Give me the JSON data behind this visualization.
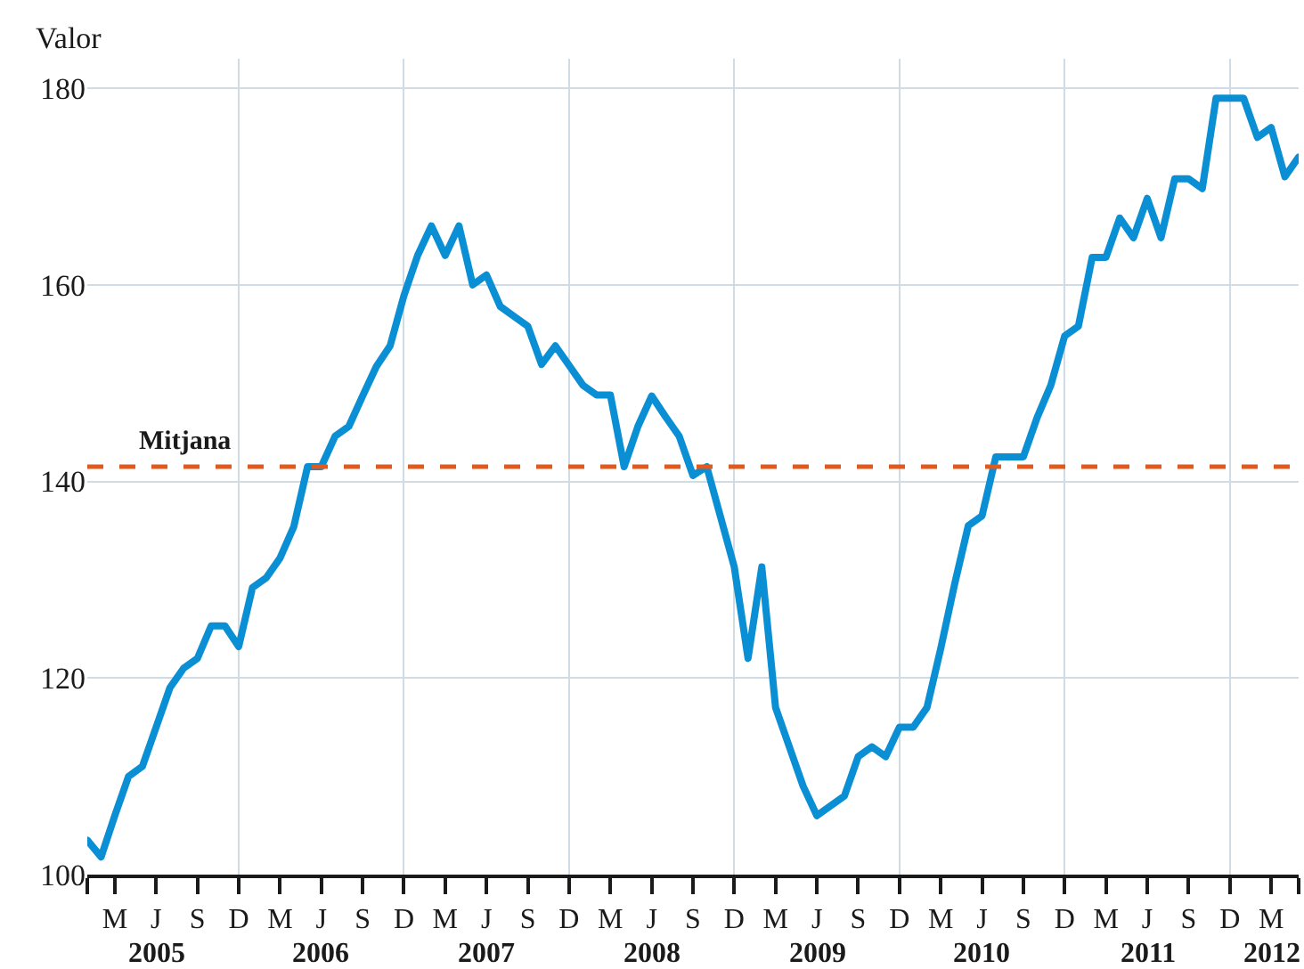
{
  "chart_data": {
    "type": "line",
    "ylabel": "Valor",
    "categories": [
      null,
      null,
      "M",
      null,
      null,
      "J",
      null,
      null,
      "S",
      null,
      null,
      "D",
      null,
      null,
      "M",
      null,
      null,
      "J",
      null,
      null,
      "S",
      null,
      null,
      "D",
      null,
      null,
      "M",
      null,
      null,
      "J",
      null,
      null,
      "S",
      null,
      null,
      "D",
      null,
      null,
      "M",
      null,
      null,
      "J",
      null,
      null,
      "S",
      null,
      null,
      "D",
      null,
      null,
      "M",
      null,
      null,
      "J",
      null,
      null,
      "S",
      null,
      null,
      "D",
      null,
      null,
      "M",
      null,
      null,
      "J",
      null,
      null,
      "S",
      null,
      null,
      "D",
      null,
      null,
      "M",
      null,
      null,
      "J",
      null,
      null,
      "S",
      null,
      null,
      "D",
      null,
      null,
      "M",
      null,
      null
    ],
    "series": [
      {
        "color": "#0a8fd4",
        "values": [
          103.5,
          101.8,
          106,
          110,
          111,
          115,
          119,
          121,
          122,
          125.3,
          125.3,
          123.2,
          129.2,
          130.2,
          132.2,
          135.4,
          141.5,
          141.5,
          144.6,
          145.6,
          148.7,
          151.7,
          153.8,
          158.9,
          163,
          166,
          163,
          166,
          160,
          161,
          157.8,
          156.8,
          155.8,
          151.9,
          153.8,
          151.8,
          149.8,
          148.8,
          148.8,
          141.5,
          145.6,
          148.7,
          146.6,
          144.6,
          140.6,
          141.5,
          136.4,
          131.3,
          122,
          131.3,
          117,
          113,
          109,
          106,
          107,
          108,
          112,
          113,
          112,
          115,
          115,
          117,
          123,
          129.5,
          135.5,
          136.5,
          142.5,
          142.5,
          142.5,
          146.5,
          149.8,
          154.8,
          155.8,
          162.8,
          162.8,
          166.8,
          164.8,
          168.8,
          164.8,
          170.8,
          170.8,
          169.8,
          179,
          179,
          179,
          175,
          176,
          171,
          173
        ]
      }
    ],
    "annotations": [
      "2005",
      "2006",
      "2007",
      "2008",
      "2009",
      "2010",
      "2011",
      "2012"
    ],
    "ylim": [
      100,
      183
    ],
    "yticks": [
      100,
      120,
      140,
      160,
      180
    ],
    "grid": true,
    "marker": "none",
    "line_style": "solid",
    "ref_lines": [
      {
        "axis": "y",
        "value": 141.5,
        "label": "Mitjana",
        "color": "#e05a1e",
        "line_style": "dashed"
      }
    ]
  }
}
